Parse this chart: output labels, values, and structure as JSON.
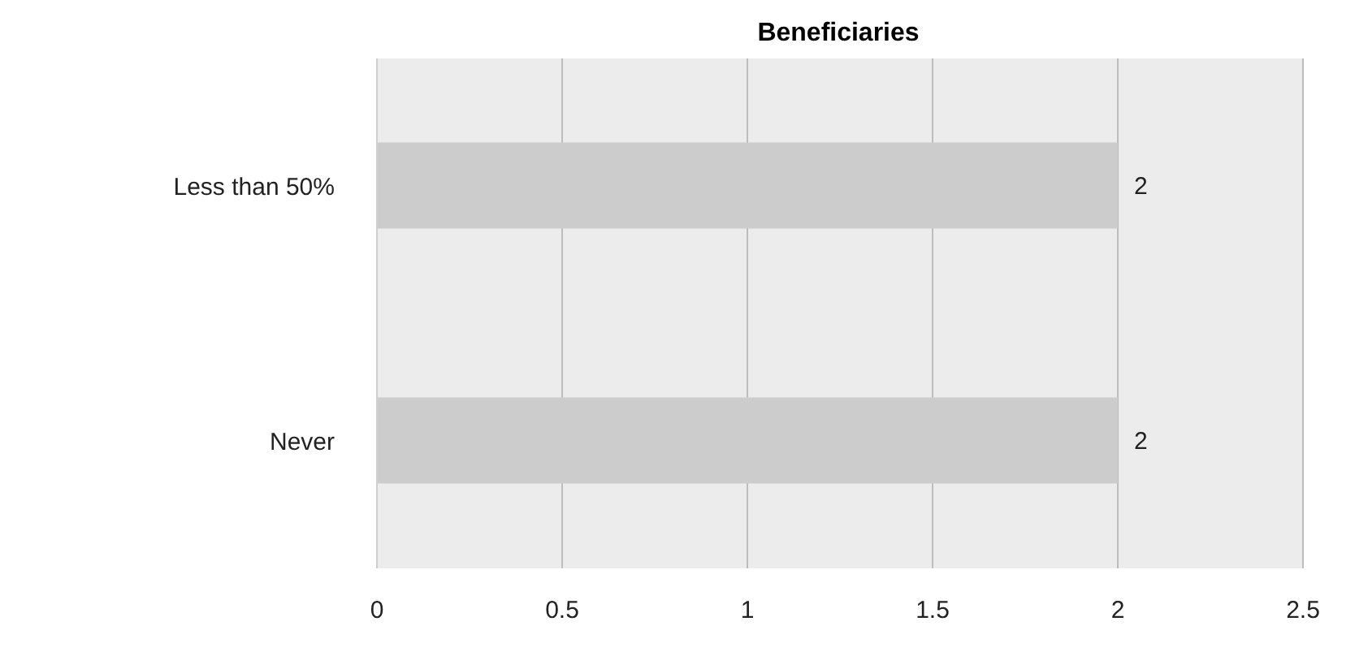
{
  "chart_data": {
    "type": "bar",
    "orientation": "horizontal",
    "title": "Beneficiaries",
    "categories": [
      "Less than 50%",
      "Never"
    ],
    "values": [
      2,
      2
    ],
    "color": "#cccccc",
    "xlim": [
      0,
      2.5
    ],
    "xticks": [
      0,
      0.5,
      1,
      1.5,
      2,
      2.5
    ],
    "grid": "x",
    "data_labels": true
  }
}
